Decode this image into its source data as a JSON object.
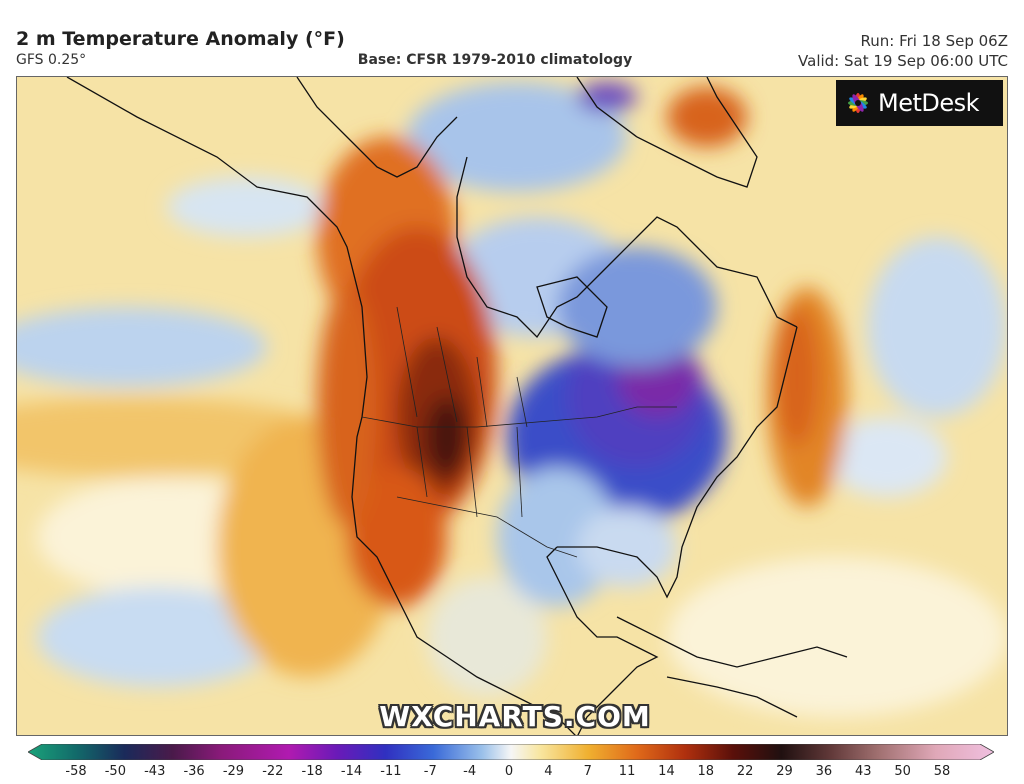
{
  "header": {
    "title": "2 m Temperature Anomaly (°F)",
    "model": "GFS 0.25°",
    "base": "Base: CFSR 1979-2010 climatology",
    "run": "Run: Fri 18 Sep 06Z",
    "valid": "Valid: Sat 19 Sep 06:00 UTC"
  },
  "logo": {
    "text": "MetDesk",
    "icon": "metdesk-flower-logo"
  },
  "watermark": "WXCHARTS.COM",
  "legend": {
    "ticks": [
      "-58",
      "-50",
      "-43",
      "-36",
      "-29",
      "-22",
      "-18",
      "-14",
      "-11",
      "-7",
      "-4",
      "0",
      "4",
      "7",
      "11",
      "14",
      "18",
      "22",
      "29",
      "36",
      "43",
      "50",
      "58"
    ]
  },
  "colors": {
    "map_base": "#f6e3a6",
    "warm_anomaly": "#c94a12",
    "strong_warm": "#5a1a0a",
    "cold_anomaly": "#3a3fc0",
    "strong_cold": "#6a1aa0",
    "mild_cold": "#a9c6ea"
  }
}
